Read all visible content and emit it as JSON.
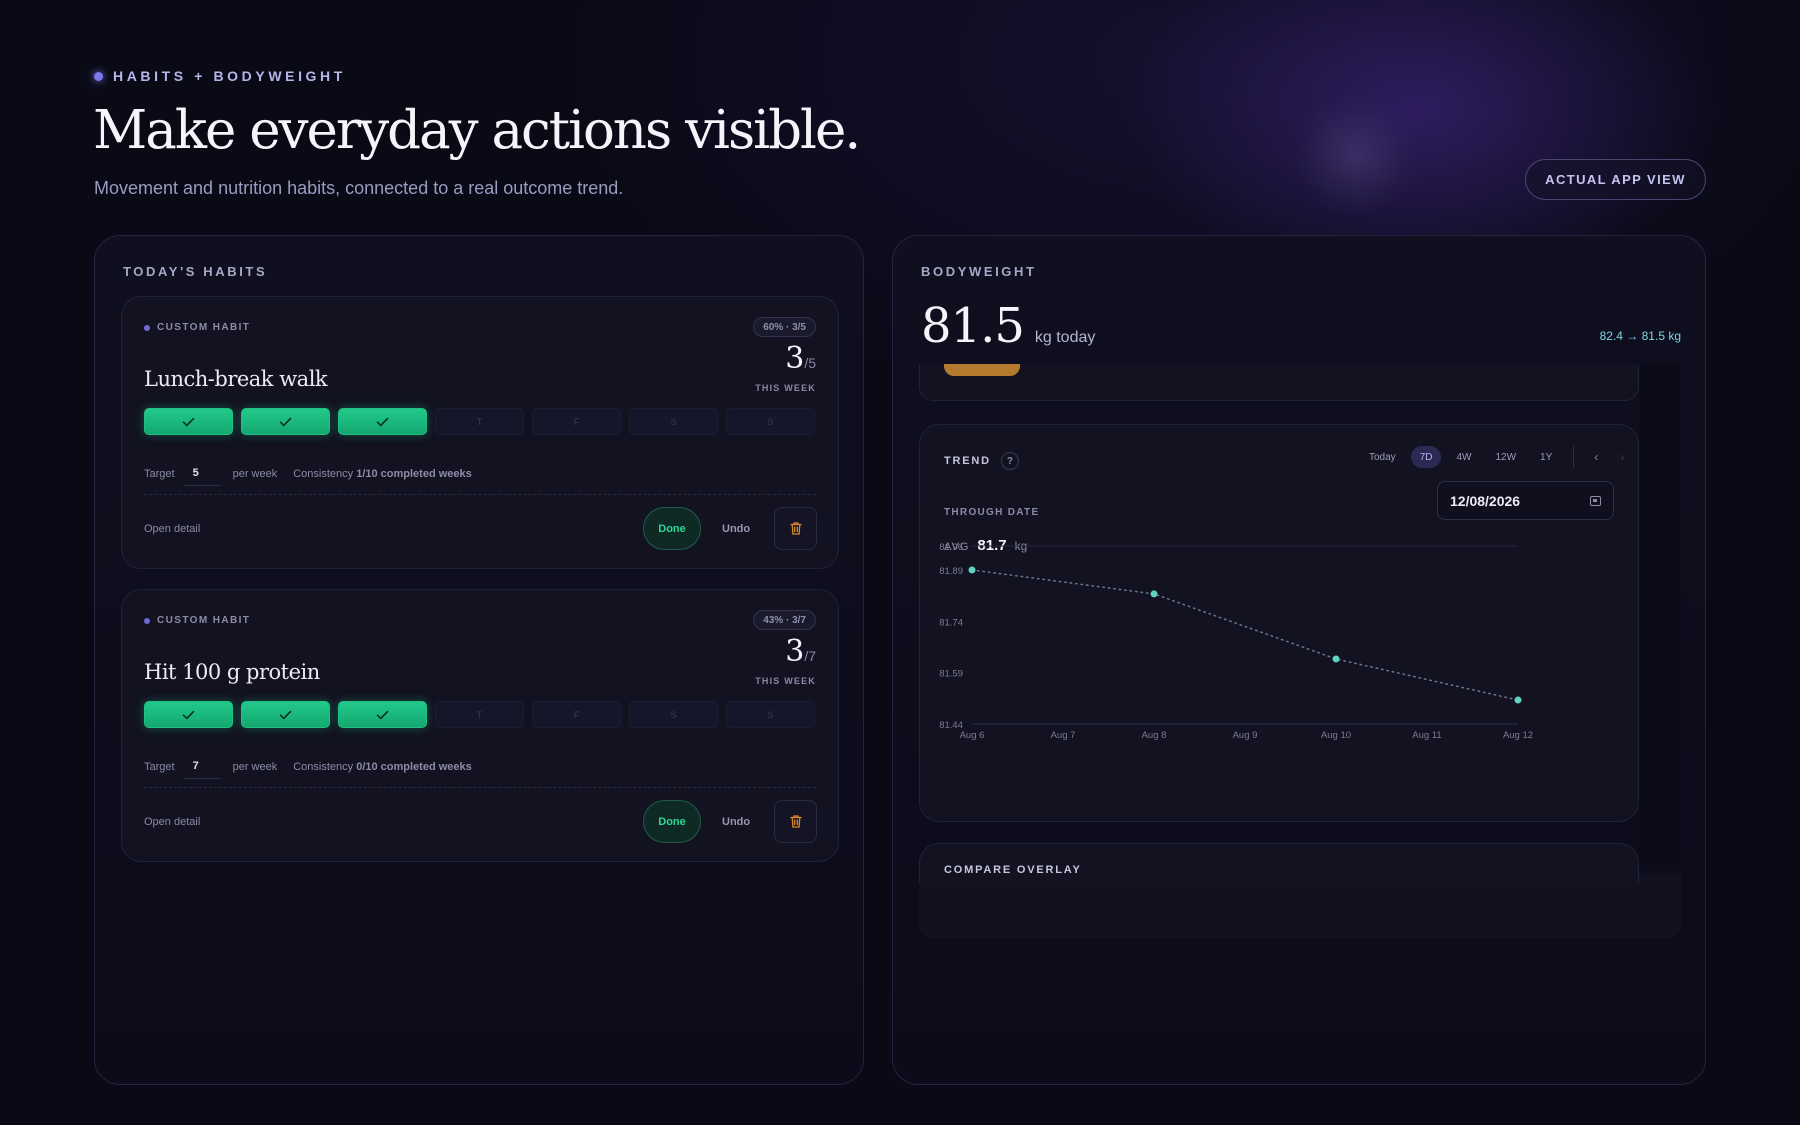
{
  "header": {
    "eyebrow": "HABITS + BODYWEIGHT",
    "title": "Make everyday actions visible.",
    "subtitle": "Movement and nutrition habits, connected to a real outcome trend.",
    "app_view_button": "ACTUAL APP VIEW"
  },
  "habits_panel": {
    "label": "TODAY'S HABITS",
    "cards": [
      {
        "tag": "CUSTOM HABIT",
        "badge": "60% · 3/5",
        "title": "Lunch-break walk",
        "count": "3",
        "count_total": "/5",
        "count_caption": "THIS WEEK",
        "days": [
          "✓",
          "✓",
          "✓",
          "T",
          "F",
          "S",
          "S"
        ],
        "days_done": [
          true,
          true,
          true,
          false,
          false,
          false,
          false
        ],
        "target_label": "Target",
        "target_value": "5",
        "per_week": "per week",
        "consistency_label": "Consistency",
        "consistency_value": "1/10 completed weeks",
        "open_detail": "Open detail",
        "done_label": "Done",
        "undo_label": "Undo",
        "delete_icon": "trash-icon"
      },
      {
        "tag": "CUSTOM HABIT",
        "badge": "43% · 3/7",
        "title": "Hit 100 g protein",
        "count": "3",
        "count_total": "/7",
        "count_caption": "THIS WEEK",
        "days": [
          "✓",
          "✓",
          "✓",
          "T",
          "F",
          "S",
          "S"
        ],
        "days_done": [
          true,
          true,
          true,
          false,
          false,
          false,
          false
        ],
        "target_label": "Target",
        "target_value": "7",
        "per_week": "per week",
        "consistency_label": "Consistency",
        "consistency_value": "0/10 completed weeks",
        "open_detail": "Open detail",
        "done_label": "Done",
        "undo_label": "Undo",
        "delete_icon": "trash-icon"
      }
    ]
  },
  "bodyweight_panel": {
    "label": "BODYWEIGHT",
    "value": "81.5",
    "unit": "kg today",
    "range": "82.4 → 81.5 kg",
    "trend": {
      "label": "TREND",
      "help_icon": "?",
      "ranges": [
        "Today",
        "7D",
        "4W",
        "12W",
        "1Y"
      ],
      "active_range": "7D",
      "prev_arrow": "‹",
      "next_arrow": "›",
      "through_date_label": "THROUGH DATE",
      "through_date": "12/08/2026",
      "avg_label": "AVG",
      "avg_value": "81.7",
      "avg_unit": "kg"
    },
    "compare_label": "COMPARE OVERLAY"
  },
  "colors": {
    "accent": "#7b78e8",
    "done_green": "#1ec183",
    "trend_point": "#5fd3c0",
    "range_text": "#7fd6e2",
    "trash_orange": "#d98a2b"
  },
  "chart_data": {
    "type": "line",
    "x": [
      "Aug 6",
      "Aug 7",
      "Aug 8",
      "Aug 9",
      "Aug 10",
      "Aug 11",
      "Aug 12"
    ],
    "series": [
      {
        "points": [
          [
            "Aug 6",
            81.89
          ],
          [
            "Aug 8",
            81.82
          ],
          [
            "Aug 10",
            81.63
          ],
          [
            "Aug 12",
            81.51
          ]
        ]
      }
    ],
    "y_ticks": [
      "81.96",
      "81.89",
      "81.74",
      "81.59",
      "81.44"
    ],
    "ylim": [
      81.44,
      81.96
    ],
    "line_style": "dotted",
    "grid": false
  }
}
